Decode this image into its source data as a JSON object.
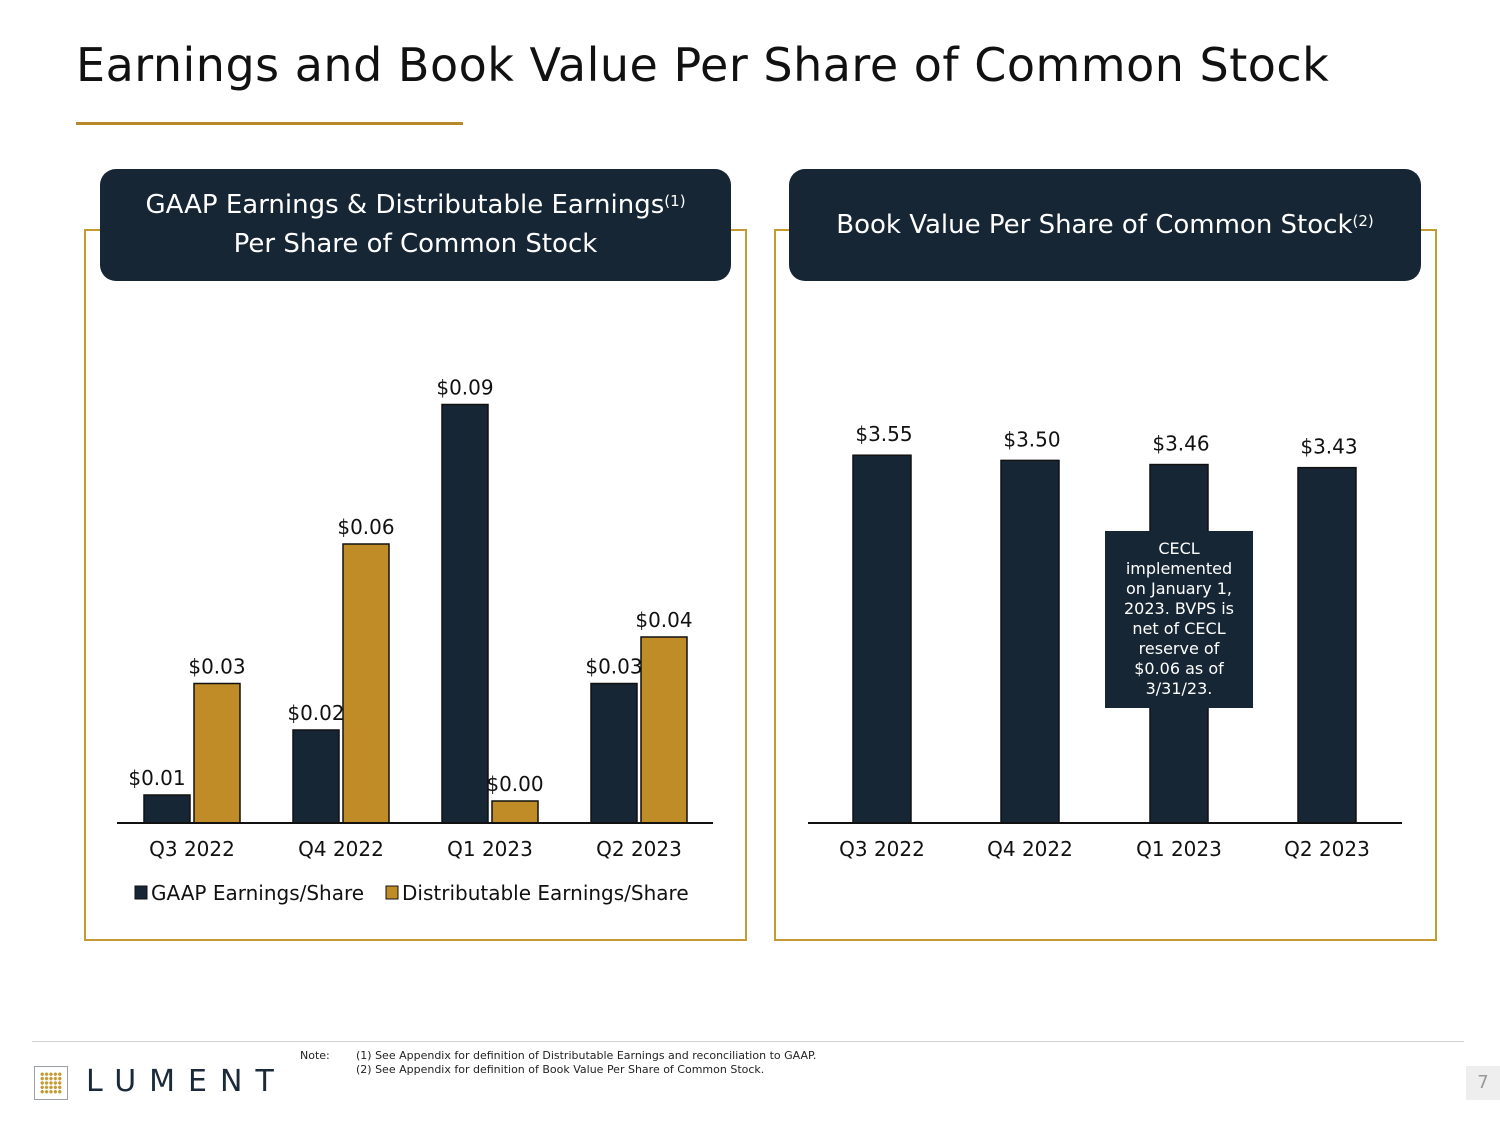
{
  "page": {
    "title": "Earnings and Book Value Per Share of Common Stock",
    "page_number": "7"
  },
  "left_panel": {
    "header_line1": "GAAP Earnings & Distributable Earnings",
    "header_sup": "(1)",
    "header_line2": "Per Share of Common Stock"
  },
  "right_panel": {
    "header_line1": "Book Value Per Share of Common Stock",
    "header_sup": "(2)",
    "note": "CECL implemented on January 1, 2023. BVPS is net of CECL reserve of $0.06 as of 3/31/23."
  },
  "footer": {
    "logo_text": "LUMENT",
    "note_label": "Note:",
    "note_1": "(1) See Appendix for definition of Distributable Earnings and reconciliation to GAAP.",
    "note_2": "(2) See Appendix for definition of Book Value Per Share of Common Stock."
  },
  "colors": {
    "navy": "#172634",
    "gold": "#bf8c28",
    "accent_border": "#c49a32"
  },
  "chart_data": [
    {
      "type": "bar",
      "categories": [
        "Q3 2022",
        "Q4 2022",
        "Q1 2023",
        "Q2 2023"
      ],
      "series": [
        {
          "name": "GAAP Earnings/Share",
          "values": [
            0.01,
            0.02,
            0.09,
            0.03
          ],
          "labels": [
            "$0.01",
            "$0.02",
            "$0.09",
            "$0.03"
          ],
          "color": "#172634"
        },
        {
          "name": "Distributable Earnings/Share",
          "values": [
            0.03,
            0.06,
            0.0,
            0.04
          ],
          "labels": [
            "$0.03",
            "$0.06",
            "$0.00",
            "$0.04"
          ],
          "color": "#bf8c28"
        }
      ],
      "legend": "bottom",
      "grid": false
    },
    {
      "type": "bar",
      "categories": [
        "Q3 2022",
        "Q4 2022",
        "Q1 2023",
        "Q2 2023"
      ],
      "series": [
        {
          "values": [
            3.55,
            3.5,
            3.46,
            3.43
          ],
          "labels": [
            "$3.55",
            "$3.50",
            "$3.46",
            "$3.43"
          ],
          "color": "#172634"
        }
      ],
      "legend": "none",
      "grid": false
    }
  ]
}
